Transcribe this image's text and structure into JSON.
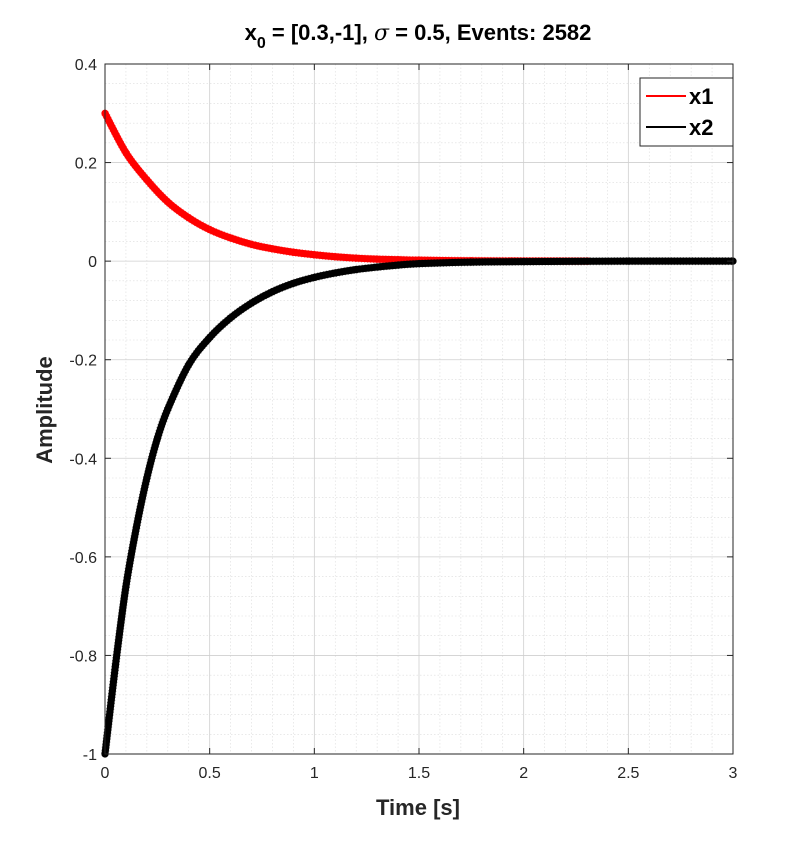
{
  "chart_data": {
    "type": "line",
    "title": {
      "prefix": "x",
      "subscript": "0",
      "initial_condition": " = [0.3,-1],   ",
      "sigma_symbol": "σ",
      "sigma_text": " = 0.5,   Events: 2582"
    },
    "xlabel": "Time [s]",
    "ylabel": "Amplitude",
    "xlim": [
      0,
      3
    ],
    "ylim": [
      -1,
      0.4
    ],
    "xticks": [
      0,
      0.5,
      1,
      1.5,
      2,
      2.5,
      3
    ],
    "xtick_labels": [
      "0",
      "0.5",
      "1",
      "1.5",
      "2",
      "2.5",
      "3"
    ],
    "yticks": [
      -1,
      -0.8,
      -0.6,
      -0.4,
      -0.2,
      0,
      0.2,
      0.4
    ],
    "ytick_labels": [
      "-1",
      "-0.8",
      "-0.6",
      "-0.4",
      "-0.2",
      "0",
      "0.2",
      "0.4"
    ],
    "grid": true,
    "minor_grid": true,
    "legend_position": "top-right",
    "series": [
      {
        "name": "x1",
        "color": "#ff0000",
        "x": [
          0,
          0.1,
          0.2,
          0.3,
          0.4,
          0.5,
          0.6,
          0.7,
          0.8,
          0.9,
          1.0,
          1.1,
          1.2,
          1.3,
          1.4,
          1.5,
          1.75,
          2.0,
          2.31
        ],
        "y": [
          0.3,
          0.22,
          0.165,
          0.12,
          0.088,
          0.064,
          0.047,
          0.034,
          0.025,
          0.018,
          0.013,
          0.009,
          0.006,
          0.004,
          0.003,
          0.002,
          0.0008,
          0.0003,
          0.0001
        ]
      },
      {
        "name": "x2",
        "color": "#000000",
        "x": [
          0,
          0.05,
          0.1,
          0.15,
          0.2,
          0.25,
          0.3,
          0.4,
          0.5,
          0.6,
          0.7,
          0.8,
          0.9,
          1.0,
          1.1,
          1.2,
          1.3,
          1.4,
          1.5,
          1.75,
          2.0,
          2.5,
          3.0
        ],
        "y": [
          -1.0,
          -0.82,
          -0.66,
          -0.54,
          -0.44,
          -0.36,
          -0.3,
          -0.21,
          -0.155,
          -0.115,
          -0.085,
          -0.062,
          -0.045,
          -0.033,
          -0.024,
          -0.017,
          -0.012,
          -0.008,
          -0.005,
          -0.002,
          -0.001,
          0.0,
          0.0
        ]
      }
    ]
  }
}
